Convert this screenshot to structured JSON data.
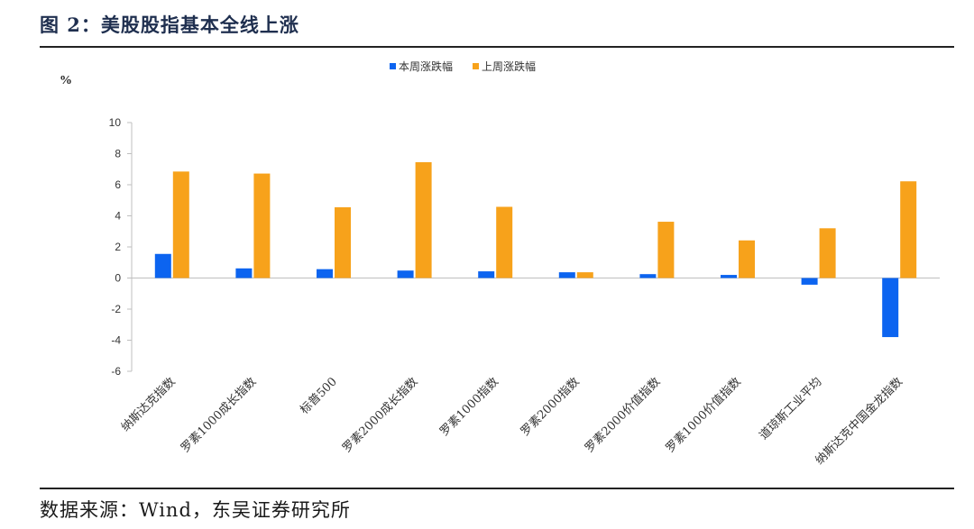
{
  "figure": {
    "title": "图 2：美股股指基本全线上涨",
    "source": "数据来源：Wind，东吴证券研究所"
  },
  "chart_data": {
    "type": "bar",
    "title": "图 2：美股股指基本全线上涨",
    "ylabel": "%",
    "xlabel": "",
    "ylim": [
      -6,
      10
    ],
    "yticks": [
      10,
      8,
      6,
      4,
      2,
      0,
      -2,
      -4,
      -6
    ],
    "ytick_labels": [
      "10",
      "8",
      "6",
      "4",
      "2",
      "0",
      "-2",
      "-4",
      "-6"
    ],
    "legend_position": "top-center",
    "categories": [
      "纳斯达克指数",
      "罗素1000成长指数",
      "标普500",
      "罗素2000成长指数",
      "罗素1000指数",
      "罗素2000指数",
      "罗素2000价值指数",
      "罗素1000价值指数",
      "道琼斯工业平均",
      "纳斯达克中国金龙指数"
    ],
    "series": [
      {
        "name": "本周涨跌幅",
        "color": "#0c64f0",
        "values": [
          1.55,
          0.62,
          0.57,
          0.48,
          0.43,
          0.37,
          0.25,
          0.2,
          -0.43,
          -3.8
        ]
      },
      {
        "name": "上周涨跌幅",
        "color": "#f7a21b",
        "values": [
          6.85,
          6.72,
          4.55,
          7.45,
          4.58,
          0.37,
          3.62,
          2.42,
          3.2,
          6.22
        ]
      }
    ]
  }
}
